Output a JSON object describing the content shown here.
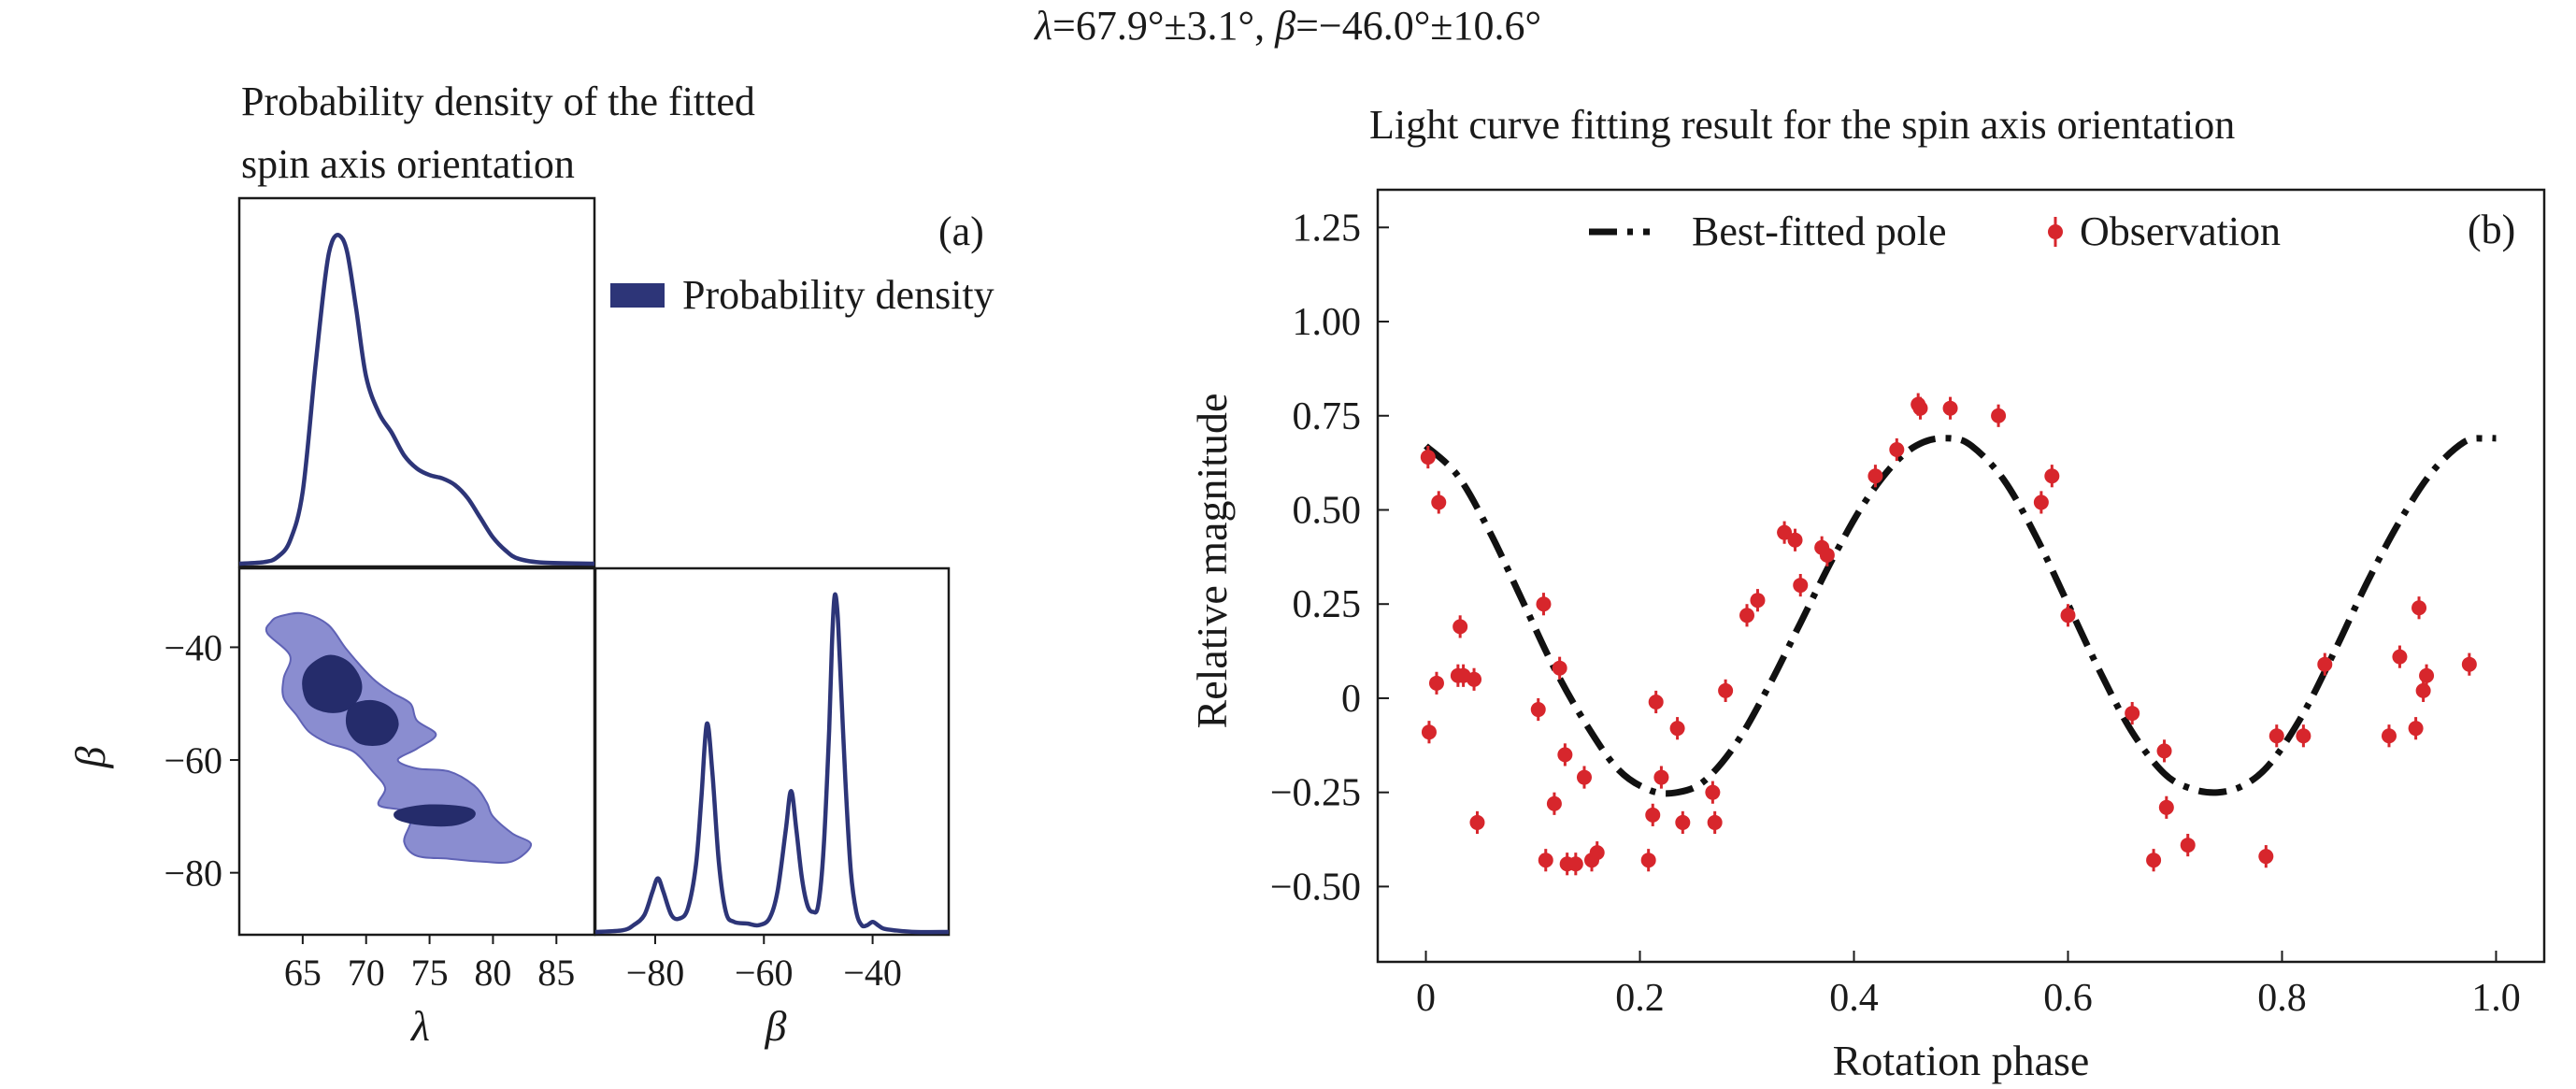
{
  "suptitle": {
    "lambda_sym": "λ",
    "lambda_text": "=67.9°±3.1°, ",
    "beta_sym": "β",
    "beta_text": "=−46.0°±10.6°"
  },
  "chart_data": [
    {
      "id": "a",
      "type": "corner",
      "title_lines": [
        "Probability density of the fitted",
        "spin axis orientation"
      ],
      "panel_label": "(a)",
      "legend": {
        "label": "Probability density",
        "color": "#2d3578",
        "placement": "right of top-left subplot"
      },
      "colors": {
        "line": "#2d3578",
        "contour_inner": "#252c6b",
        "contour_outer": "#8a8dd0"
      },
      "lambda_marginal": {
        "xlim": [
          60,
          88
        ],
        "x": [
          60,
          62,
          63,
          64,
          65,
          66,
          66.8,
          67.3,
          67.9,
          68.5,
          69.2,
          70,
          71,
          72,
          73,
          74,
          75,
          76,
          77,
          78,
          79,
          80,
          81,
          82,
          84,
          88
        ],
        "density": [
          0,
          0.005,
          0.02,
          0.07,
          0.22,
          0.6,
          0.88,
          0.98,
          1.0,
          0.95,
          0.78,
          0.57,
          0.46,
          0.4,
          0.33,
          0.29,
          0.27,
          0.26,
          0.24,
          0.2,
          0.14,
          0.08,
          0.04,
          0.015,
          0.003,
          0
        ]
      },
      "beta_lambda_contour": {
        "xlabel": "λ",
        "ylabel": "β",
        "xlim": [
          60,
          88
        ],
        "ylim": [
          -91,
          -26
        ],
        "xticks": [
          "65",
          "70",
          "75",
          "80",
          "85"
        ],
        "xtick_values": [
          65,
          70,
          75,
          80,
          85
        ],
        "yticks": [
          "−40",
          "−60",
          "−80"
        ],
        "ytick_values": [
          -40,
          -60,
          -80
        ],
        "outer_region": [
          [
            63.2,
            -34.5
          ],
          [
            65,
            -34
          ],
          [
            67,
            -36
          ],
          [
            68.5,
            -40.5
          ],
          [
            70.5,
            -45.5
          ],
          [
            72,
            -48
          ],
          [
            73.5,
            -50
          ],
          [
            74,
            -53
          ],
          [
            75.5,
            -55.5
          ],
          [
            74,
            -58
          ],
          [
            72.5,
            -60
          ],
          [
            74,
            -61.5
          ],
          [
            76.5,
            -62
          ],
          [
            78.5,
            -64.5
          ],
          [
            79.5,
            -67.5
          ],
          [
            80,
            -70
          ],
          [
            81.5,
            -73
          ],
          [
            83,
            -75
          ],
          [
            81.5,
            -78
          ],
          [
            79,
            -78
          ],
          [
            76.5,
            -77.5
          ],
          [
            74,
            -77
          ],
          [
            73,
            -74.5
          ],
          [
            73.5,
            -71
          ],
          [
            73,
            -69
          ],
          [
            71,
            -68
          ],
          [
            71.5,
            -65
          ],
          [
            70.5,
            -62
          ],
          [
            69,
            -58.5
          ],
          [
            67,
            -57
          ],
          [
            65.5,
            -55
          ],
          [
            64.5,
            -52
          ],
          [
            63.5,
            -49
          ],
          [
            63.5,
            -45.5
          ],
          [
            64,
            -41.5
          ],
          [
            62.2,
            -37.5
          ],
          [
            62.5,
            -35.5
          ]
        ],
        "inner_regions": [
          [
            [
              65.5,
              -43.5
            ],
            [
              67,
              -41.5
            ],
            [
              68.5,
              -42.5
            ],
            [
              69.5,
              -45.5
            ],
            [
              69.5,
              -48.5
            ],
            [
              68.5,
              -51
            ],
            [
              67,
              -51.5
            ],
            [
              65.5,
              -50
            ],
            [
              65,
              -46.5
            ]
          ],
          [
            [
              68.8,
              -50.5
            ],
            [
              70.5,
              -49.5
            ],
            [
              72,
              -51
            ],
            [
              72.5,
              -54
            ],
            [
              71.5,
              -57
            ],
            [
              69.5,
              -57
            ],
            [
              68.5,
              -54
            ]
          ],
          [
            [
              72.5,
              -69
            ],
            [
              75,
              -68
            ],
            [
              78,
              -68.5
            ],
            [
              78.5,
              -70
            ],
            [
              77,
              -71.5
            ],
            [
              74.5,
              -71.5
            ],
            [
              72.5,
              -70.5
            ]
          ]
        ]
      },
      "beta_marginal": {
        "xlabel": "β",
        "xlim": [
          -91,
          -26
        ],
        "xticks": [
          "−80",
          "−60",
          "−40"
        ],
        "xtick_values": [
          -80,
          -60,
          -40
        ],
        "x": [
          -91,
          -86,
          -84,
          -82,
          -80.5,
          -79.5,
          -78.5,
          -77,
          -75.5,
          -74,
          -72.5,
          -71.5,
          -70.5,
          -69.5,
          -68.3,
          -67,
          -65.5,
          -63,
          -61,
          -59,
          -57.5,
          -56,
          -55,
          -54,
          -53,
          -52,
          -51,
          -50,
          -49,
          -48,
          -47.5,
          -47,
          -46.5,
          -46,
          -45,
          -44,
          -43,
          -42,
          -41,
          -40,
          -39,
          -38,
          -36,
          -32,
          -26
        ],
        "density": [
          0,
          0.005,
          0.02,
          0.05,
          0.12,
          0.16,
          0.12,
          0.05,
          0.04,
          0.07,
          0.2,
          0.4,
          0.62,
          0.48,
          0.21,
          0.06,
          0.03,
          0.025,
          0.02,
          0.04,
          0.12,
          0.3,
          0.42,
          0.3,
          0.16,
          0.08,
          0.06,
          0.08,
          0.25,
          0.6,
          0.85,
          1.0,
          0.96,
          0.8,
          0.45,
          0.18,
          0.06,
          0.02,
          0.02,
          0.03,
          0.02,
          0.01,
          0.005,
          0,
          0
        ]
      }
    },
    {
      "id": "b",
      "type": "line+scatter",
      "title": "Light curve fitting result for the spin axis orientation",
      "panel_label": "(b)",
      "xlabel": "Rotation phase",
      "ylabel": "Relative magnitude",
      "xlim": [
        -0.045,
        1.045
      ],
      "ylim": [
        -0.7,
        1.35
      ],
      "xticks": [
        "0",
        "0.2",
        "0.4",
        "0.6",
        "0.8",
        "1.0"
      ],
      "xtick_values": [
        0,
        0.2,
        0.4,
        0.6,
        0.8,
        1.0
      ],
      "yticks": [
        "1.25",
        "1.00",
        "0.75",
        "0.50",
        "0.25",
        "0",
        "−0.25",
        "−0.50"
      ],
      "ytick_values": [
        1.25,
        1.0,
        0.75,
        0.5,
        0.25,
        0,
        -0.25,
        -0.5
      ],
      "grid": false,
      "legend": {
        "placement": "top-center",
        "line_label": "Best-fitted pole",
        "points_label": "Observation"
      },
      "colors": {
        "model": "#111111",
        "observation": "#d7262c"
      },
      "model_curve": {
        "name": "Best-fitted pole",
        "x": [
          0,
          0.03,
          0.06,
          0.09,
          0.12,
          0.15,
          0.18,
          0.21,
          0.235,
          0.26,
          0.29,
          0.32,
          0.35,
          0.38,
          0.41,
          0.44,
          0.465,
          0.49,
          0.51,
          0.54,
          0.57,
          0.6,
          0.63,
          0.66,
          0.69,
          0.715,
          0.74,
          0.765,
          0.79,
          0.82,
          0.85,
          0.88,
          0.91,
          0.94,
          0.97,
          0.99,
          1.0
        ],
        "y": [
          0.67,
          0.59,
          0.44,
          0.26,
          0.08,
          -0.07,
          -0.19,
          -0.245,
          -0.25,
          -0.22,
          -0.12,
          0.03,
          0.2,
          0.37,
          0.52,
          0.63,
          0.68,
          0.69,
          0.67,
          0.58,
          0.43,
          0.25,
          0.07,
          -0.09,
          -0.2,
          -0.24,
          -0.25,
          -0.23,
          -0.17,
          -0.04,
          0.13,
          0.31,
          0.47,
          0.6,
          0.68,
          0.69,
          0.69
        ]
      },
      "observations": {
        "name": "Observation",
        "x": [
          0.002,
          0.003,
          0.01,
          0.012,
          0.03,
          0.032,
          0.035,
          0.045,
          0.048,
          0.105,
          0.11,
          0.112,
          0.12,
          0.125,
          0.13,
          0.132,
          0.14,
          0.148,
          0.155,
          0.16,
          0.208,
          0.212,
          0.215,
          0.22,
          0.235,
          0.24,
          0.268,
          0.27,
          0.28,
          0.3,
          0.31,
          0.335,
          0.345,
          0.35,
          0.37,
          0.375,
          0.42,
          0.44,
          0.46,
          0.462,
          0.49,
          0.535,
          0.575,
          0.585,
          0.6,
          0.66,
          0.68,
          0.69,
          0.692,
          0.712,
          0.785,
          0.795,
          0.82,
          0.84,
          0.9,
          0.91,
          0.925,
          0.928,
          0.932,
          0.935,
          0.975
        ],
        "y": [
          0.64,
          -0.09,
          0.04,
          0.52,
          0.06,
          0.19,
          0.06,
          0.05,
          -0.33,
          -0.03,
          0.25,
          -0.43,
          -0.28,
          0.08,
          -0.15,
          -0.44,
          -0.44,
          -0.21,
          -0.43,
          -0.41,
          -0.43,
          -0.31,
          -0.01,
          -0.21,
          -0.08,
          -0.33,
          -0.25,
          -0.33,
          0.02,
          0.22,
          0.26,
          0.44,
          0.42,
          0.3,
          0.4,
          0.38,
          0.59,
          0.66,
          0.78,
          0.77,
          0.77,
          0.75,
          0.52,
          0.59,
          0.22,
          -0.04,
          -0.43,
          -0.14,
          -0.29,
          -0.39,
          -0.42,
          -0.1,
          -0.1,
          0.09,
          -0.1,
          0.11,
          -0.08,
          0.24,
          0.02,
          0.06,
          0.09
        ],
        "yerr": 0.03
      }
    }
  ]
}
